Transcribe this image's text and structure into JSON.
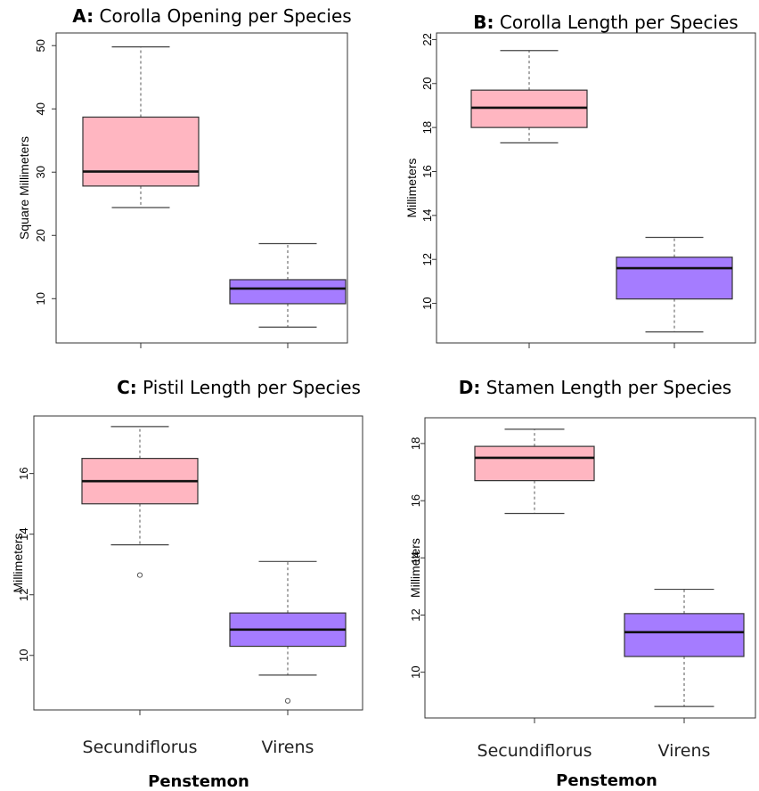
{
  "chart_data": [
    {
      "type": "box",
      "title_prefix": "A:",
      "title_text": "Corolla Opening per Species",
      "ylabel": "Square Millimeters",
      "xlabel": "",
      "categories": [
        "Secundiflorus",
        "Virens"
      ],
      "ylim": [
        3,
        52
      ],
      "yticks": [
        10,
        20,
        30,
        40,
        50
      ],
      "show_category_labels": false,
      "boxes": [
        {
          "category": "Secundiflorus",
          "color": "#ffb6c1",
          "whisker_low": 24.4,
          "q1": 27.8,
          "median": 30.1,
          "q3": 38.7,
          "whisker_high": 49.8,
          "outliers": []
        },
        {
          "category": "Virens",
          "color": "#a57cff",
          "whisker_low": 5.5,
          "q1": 9.2,
          "median": 11.6,
          "q3": 13.0,
          "whisker_high": 18.7,
          "outliers": []
        }
      ]
    },
    {
      "type": "box",
      "title_prefix": "B:",
      "title_text": "Corolla Length per Species",
      "ylabel": "Millimeters",
      "xlabel": "",
      "categories": [
        "Secundiflorus",
        "Virens"
      ],
      "ylim": [
        8.2,
        22.3
      ],
      "yticks": [
        10,
        12,
        14,
        16,
        18,
        20,
        22
      ],
      "show_category_labels": false,
      "boxes": [
        {
          "category": "Secundiflorus",
          "color": "#ffb6c1",
          "whisker_low": 17.3,
          "q1": 18.0,
          "median": 18.9,
          "q3": 19.7,
          "whisker_high": 21.5,
          "outliers": []
        },
        {
          "category": "Virens",
          "color": "#a57cff",
          "whisker_low": 8.7,
          "q1": 10.2,
          "median": 11.6,
          "q3": 12.1,
          "whisker_high": 13.0,
          "outliers": []
        }
      ]
    },
    {
      "type": "box",
      "title_prefix": "C:",
      "title_text": "Pistil Length per Species",
      "ylabel": "Millimeters",
      "xlabel": "Penstemon",
      "categories": [
        "Secundiflorus",
        "Virens"
      ],
      "ylim": [
        8.2,
        17.9
      ],
      "yticks": [
        10,
        12,
        14,
        16
      ],
      "show_category_labels": true,
      "boxes": [
        {
          "category": "Secundiflorus",
          "color": "#ffb6c1",
          "whisker_low": 13.65,
          "q1": 15.0,
          "median": 15.75,
          "q3": 16.5,
          "whisker_high": 17.55,
          "outliers": [
            12.65
          ]
        },
        {
          "category": "Virens",
          "color": "#a57cff",
          "whisker_low": 9.35,
          "q1": 10.3,
          "median": 10.85,
          "q3": 11.4,
          "whisker_high": 13.1,
          "outliers": [
            8.5
          ]
        }
      ]
    },
    {
      "type": "box",
      "title_prefix": "D:",
      "title_text": "Stamen Length per Species",
      "ylabel": "Millimeters",
      "xlabel": "Penstemon",
      "categories": [
        "Secundiflorus",
        "Virens"
      ],
      "ylim": [
        8.4,
        18.9
      ],
      "yticks": [
        10,
        12,
        14,
        16,
        18
      ],
      "show_category_labels": true,
      "boxes": [
        {
          "category": "Secundiflorus",
          "color": "#ffb6c1",
          "whisker_low": 15.55,
          "q1": 16.7,
          "median": 17.5,
          "q3": 17.9,
          "whisker_high": 18.5,
          "outliers": []
        },
        {
          "category": "Virens",
          "color": "#a57cff",
          "whisker_low": 8.8,
          "q1": 10.55,
          "median": 11.4,
          "q3": 12.05,
          "whisker_high": 12.9,
          "outliers": []
        }
      ]
    }
  ]
}
